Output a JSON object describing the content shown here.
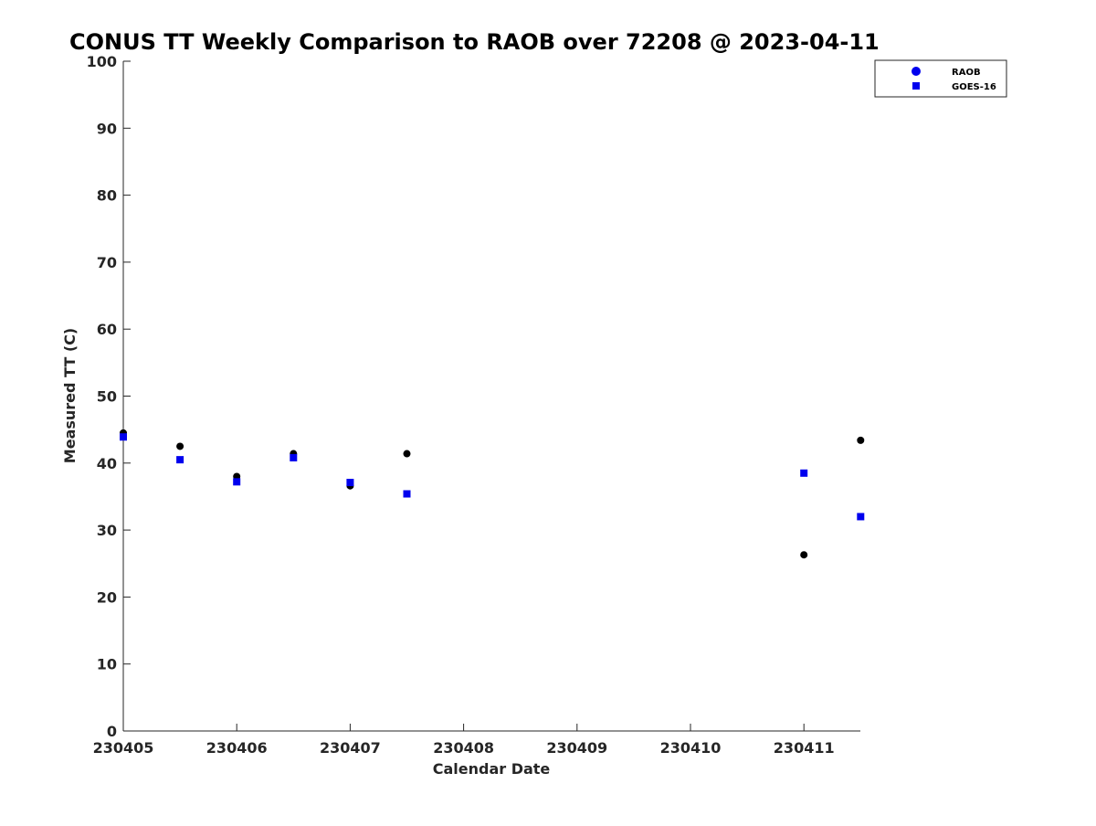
{
  "chart_data": {
    "type": "scatter",
    "title": "CONUS TT Weekly Comparison to RAOB over 72208 @ 2023-04-11",
    "xlabel": "Calendar Date",
    "ylabel": "Measured TT (C)",
    "xlim": [
      "230405",
      "230411 12Z"
    ],
    "ylim": [
      0,
      100
    ],
    "x_ticks": [
      "230405",
      "230406",
      "230407",
      "230408",
      "230409",
      "230410",
      "230411"
    ],
    "y_ticks": [
      0,
      10,
      20,
      30,
      40,
      50,
      60,
      70,
      80,
      90,
      100
    ],
    "legend_position": "top-right",
    "series": [
      {
        "name": "RAOB",
        "marker": "circle",
        "color": "#000000",
        "legend_color": "#0000ee",
        "points": [
          {
            "x": "230405 00Z",
            "y": 44.5
          },
          {
            "x": "230405 12Z",
            "y": 42.5
          },
          {
            "x": "230406 00Z",
            "y": 38.0
          },
          {
            "x": "230406 12Z",
            "y": 41.4
          },
          {
            "x": "230407 00Z",
            "y": 36.6
          },
          {
            "x": "230407 12Z",
            "y": 41.4
          },
          {
            "x": "230411 00Z",
            "y": 26.3
          },
          {
            "x": "230411 12Z",
            "y": 43.4
          }
        ]
      },
      {
        "name": "GOES-16",
        "marker": "square",
        "color": "#0000ee",
        "legend_color": "#0000ee",
        "points": [
          {
            "x": "230405 00Z",
            "y": 43.9
          },
          {
            "x": "230405 12Z",
            "y": 40.5
          },
          {
            "x": "230406 00Z",
            "y": 37.2
          },
          {
            "x": "230406 12Z",
            "y": 40.8
          },
          {
            "x": "230407 00Z",
            "y": 37.1
          },
          {
            "x": "230407 12Z",
            "y": 35.4
          },
          {
            "x": "230411 00Z",
            "y": 38.5
          },
          {
            "x": "230411 12Z",
            "y": 32.0
          }
        ]
      }
    ]
  }
}
